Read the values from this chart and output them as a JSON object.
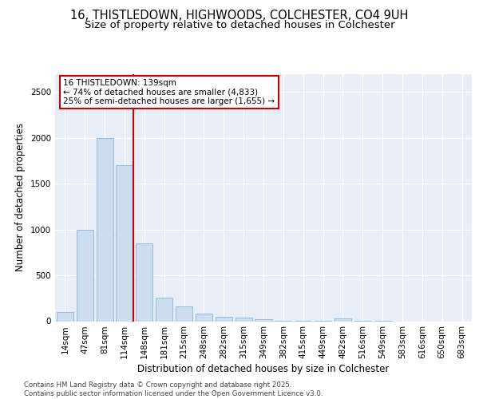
{
  "title_line1": "16, THISTLEDOWN, HIGHWOODS, COLCHESTER, CO4 9UH",
  "title_line2": "Size of property relative to detached houses in Colchester",
  "xlabel": "Distribution of detached houses by size in Colchester",
  "ylabel": "Number of detached properties",
  "bar_color": "#ccddf0",
  "bar_edge_color": "#8ab4d8",
  "background_color": "#e8eef8",
  "grid_color": "#ffffff",
  "vline_color": "#cc0000",
  "annotation_text": "16 THISTLEDOWN: 139sqm\n← 74% of detached houses are smaller (4,833)\n25% of semi-detached houses are larger (1,655) →",
  "annotation_box_color": "#ffffff",
  "annotation_border_color": "#cc0000",
  "footer_line1": "Contains HM Land Registry data © Crown copyright and database right 2025.",
  "footer_line2": "Contains public sector information licensed under the Open Government Licence v3.0.",
  "categories": [
    "14sqm",
    "47sqm",
    "81sqm",
    "114sqm",
    "148sqm",
    "181sqm",
    "215sqm",
    "248sqm",
    "282sqm",
    "315sqm",
    "349sqm",
    "382sqm",
    "415sqm",
    "449sqm",
    "482sqm",
    "516sqm",
    "549sqm",
    "583sqm",
    "616sqm",
    "650sqm",
    "683sqm"
  ],
  "values": [
    100,
    1000,
    2000,
    1700,
    850,
    260,
    160,
    80,
    50,
    40,
    20,
    5,
    3,
    2,
    30,
    2,
    1,
    0,
    0,
    0,
    0
  ],
  "vline_x": 3.45,
  "ylim": [
    0,
    2700
  ],
  "yticks": [
    0,
    500,
    1000,
    1500,
    2000,
    2500
  ],
  "title_fontsize": 10.5,
  "subtitle_fontsize": 9.5,
  "axis_fontsize": 8.5,
  "tick_fontsize": 7.5,
  "annot_fontsize": 7.5
}
